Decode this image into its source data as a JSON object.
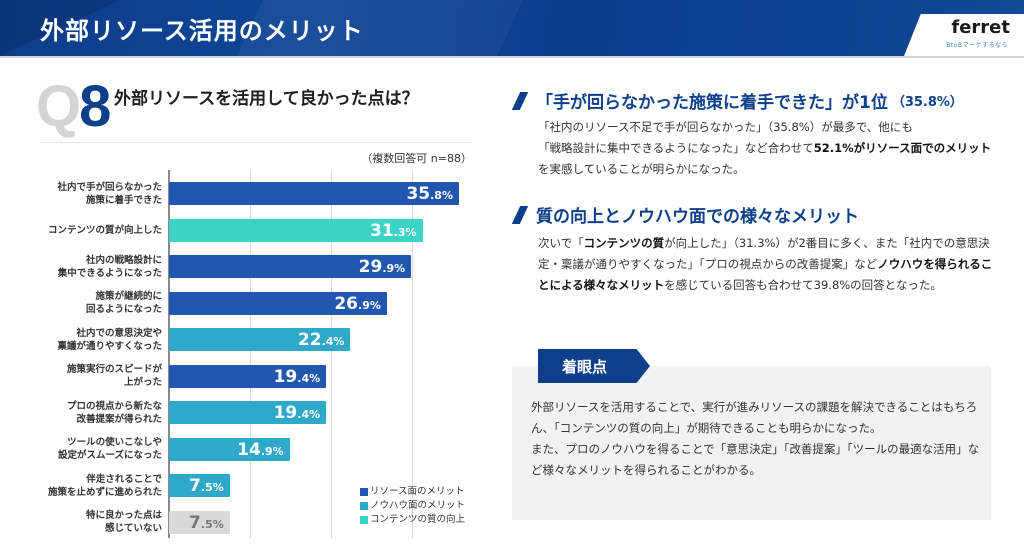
{
  "header": {
    "title": "外部リソース活用のメリット",
    "logo": {
      "name": "ferret",
      "tagline": "BtoBマーケするなら"
    }
  },
  "question": {
    "q_letter": "Q",
    "q_number": "8",
    "title": "外部リソースを活用して良かった点は？",
    "note": "（複数回答可 n=88）"
  },
  "colors": {
    "brand": "#0d3f8a",
    "resource": "#2257b0",
    "knowhow": "#2fa9c9",
    "content": "#3dd4c5",
    "none": "#d9d9d9"
  },
  "chart_data": {
    "type": "bar",
    "orientation": "horizontal",
    "title": "外部リソースを活用して良かった点は？",
    "xlim": [
      0,
      40
    ],
    "grid_x": [
      10,
      20,
      30
    ],
    "unit": "%",
    "categories": [
      [
        "社内で手が回らなかった",
        "施策に着手できた"
      ],
      [
        "コンテンツの質が向上した"
      ],
      [
        "社内の戦略設計に",
        "集中できるようになった"
      ],
      [
        "施策が継続的に",
        "回るようになった"
      ],
      [
        "社内での意思決定や",
        "稟議が通りやすくなった"
      ],
      [
        "施策実行のスピードが",
        "上がった"
      ],
      [
        "プロの視点から新たな",
        "改善提案が得られた"
      ],
      [
        "ツールの使いこなしや",
        "設定がスムーズになった"
      ],
      [
        "伴走されることで",
        "施策を止めずに進められた"
      ],
      [
        "特に良かった点は",
        "感じていない"
      ]
    ],
    "values": [
      35.8,
      31.3,
      29.9,
      26.9,
      22.4,
      19.4,
      19.4,
      14.9,
      7.5,
      7.5
    ],
    "value_labels": [
      {
        "int": "35",
        "dec": ".8%"
      },
      {
        "int": "31",
        "dec": ".3%"
      },
      {
        "int": "29",
        "dec": ".9%"
      },
      {
        "int": "26",
        "dec": ".9%"
      },
      {
        "int": "22",
        "dec": ".4%"
      },
      {
        "int": "19",
        "dec": ".4%"
      },
      {
        "int": "19",
        "dec": ".4%"
      },
      {
        "int": "14",
        "dec": ".9%"
      },
      {
        "int": "7",
        "dec": ".5%"
      },
      {
        "int": "7",
        "dec": ".5%"
      }
    ],
    "groups": [
      "resource",
      "content",
      "resource",
      "resource",
      "knowhow",
      "resource",
      "knowhow",
      "knowhow",
      "knowhow",
      "none"
    ],
    "legend": [
      {
        "key": "resource",
        "label": "リソース面のメリット"
      },
      {
        "key": "knowhow",
        "label": "ノウハウ面のメリット"
      },
      {
        "key": "content",
        "label": "コンテンツの質の向上"
      }
    ],
    "legend_position": "bottom-right"
  },
  "section1": {
    "heading": "「手が回らなかった施策に着手できた」が1位",
    "heading_sub": "（35.8%）",
    "body_1": "「社内のリソース不足で手が回らなかった」（35.8%）が最多で、他にも",
    "body_2": "「戦略設計に集中できるようになった」など合わせて",
    "body_bold": "52.1%がリソース面でのメリット",
    "body_3": "を実感していることが明らかになった。"
  },
  "section2": {
    "heading": "質の向上とノウハウ面での様々なメリット",
    "body_1": "次いで「",
    "body_bold1": "コンテンツの質",
    "body_2": "が向上した」（31.3%）が2番目に多く、また「社内での意思決定・稟議が通りやすくなった」「プロの視点からの改善提案」など",
    "body_bold2": "ノウハウを得られることによる様々なメリット",
    "body_3": "を感じている回答も合わせて39.8%の回答となった。"
  },
  "focus": {
    "tag": "着眼点",
    "para1": "外部リソースを活用することで、実行が進みリソースの課題を解決できることはもちろん、「コンテンツの質の向上」が期待できることも明らかになった。",
    "para2": "また、プロのノウハウを得ることで「意思決定」「改善提案」「ツールの最適な活用」など様々なメリットを得られることがわかる。"
  }
}
